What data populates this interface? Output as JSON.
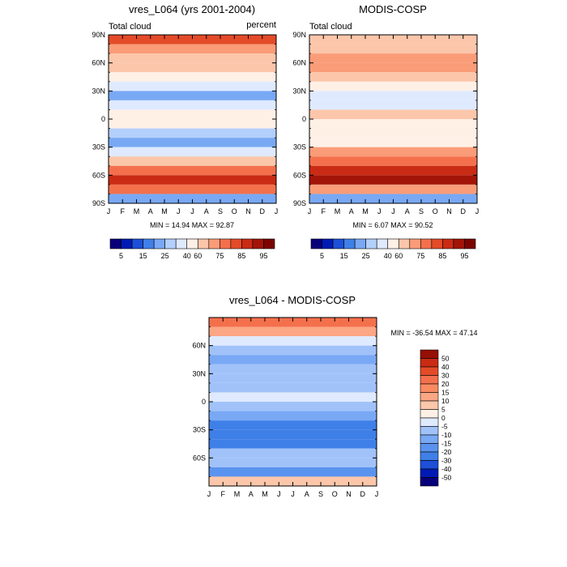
{
  "chart_data": [
    {
      "type": "heatmap",
      "title": "vres_L064 (yrs 2001-2004)",
      "left_label": "Total cloud",
      "right_label": "percent",
      "x_months": [
        "J",
        "F",
        "M",
        "A",
        "M",
        "J",
        "J",
        "A",
        "S",
        "O",
        "N",
        "D",
        "J"
      ],
      "y_ticks": [
        "90N",
        "60N",
        "30N",
        "0",
        "30S",
        "60S",
        "90S"
      ],
      "y_tick_values": [
        90,
        60,
        30,
        0,
        -30,
        -60,
        -90
      ],
      "ylim": [
        -90,
        90
      ],
      "stats": "MIN =  14.94 MAX =  92.87",
      "colorbar": {
        "orientation": "horizontal",
        "labels": [
          "5",
          "15",
          "25",
          "40",
          "60",
          "75",
          "85",
          "95"
        ]
      },
      "fields": {
        "description": "zonal-band approximations of the contour field (lat in degrees, values in percent)",
        "lat_bands": [
          85,
          75,
          65,
          55,
          45,
          35,
          25,
          15,
          5,
          -5,
          -15,
          -25,
          -35,
          -45,
          -55,
          -65,
          -75,
          -85
        ],
        "values": [
          75,
          68,
          58,
          50,
          42,
          36,
          22,
          30,
          45,
          40,
          25,
          20,
          30,
          50,
          72,
          80,
          70,
          20
        ]
      }
    },
    {
      "type": "heatmap",
      "title": "MODIS-COSP",
      "left_label": "Total cloud",
      "x_months": [
        "J",
        "F",
        "M",
        "A",
        "M",
        "J",
        "J",
        "A",
        "S",
        "O",
        "N",
        "D",
        "J"
      ],
      "y_ticks": [
        "90N",
        "60N",
        "30N",
        "0",
        "30S",
        "60S",
        "90S"
      ],
      "y_tick_values": [
        90,
        60,
        30,
        0,
        -30,
        -60,
        -90
      ],
      "ylim": [
        -90,
        90
      ],
      "stats": "MIN =   6.07 MAX =  90.52",
      "colorbar": {
        "orientation": "horizontal",
        "labels": [
          "5",
          "15",
          "25",
          "40",
          "60",
          "75",
          "85",
          "95"
        ]
      },
      "fields": {
        "description": "zonal-band approximations of the contour field (lat in degrees, values in percent)",
        "lat_bands": [
          85,
          75,
          65,
          55,
          45,
          35,
          25,
          15,
          5,
          -5,
          -15,
          -25,
          -35,
          -45,
          -55,
          -65,
          -75,
          -85
        ],
        "values": [
          50,
          58,
          62,
          60,
          52,
          40,
          30,
          38,
          50,
          48,
          42,
          48,
          60,
          70,
          82,
          85,
          60,
          20
        ]
      }
    },
    {
      "type": "heatmap",
      "title": "vres_L064 - MODIS-COSP",
      "x_months": [
        "J",
        "F",
        "M",
        "A",
        "M",
        "J",
        "J",
        "A",
        "S",
        "O",
        "N",
        "D",
        "J"
      ],
      "y_ticks": [
        "60N",
        "30N",
        "0",
        "30S",
        "60S"
      ],
      "y_tick_values": [
        60,
        30,
        0,
        -30,
        -60
      ],
      "ylim": [
        -90,
        90
      ],
      "stats": "MIN = -36.54 MAX =  47.14",
      "colorbar": {
        "orientation": "vertical",
        "labels": [
          "50",
          "40",
          "30",
          "20",
          "15",
          "10",
          "5",
          "0",
          "-5",
          "-10",
          "-15",
          "-20",
          "-30",
          "-40",
          "-50"
        ]
      },
      "fields": {
        "description": "zonal-band approximations of the difference field (lat in degrees, values in percent)",
        "lat_bands": [
          85,
          75,
          65,
          55,
          45,
          35,
          25,
          15,
          5,
          -5,
          -15,
          -25,
          -35,
          -45,
          -55,
          -65,
          -75,
          -85
        ],
        "values": [
          28,
          10,
          -4,
          -10,
          -12,
          -6,
          -8,
          -8,
          -5,
          -8,
          -15,
          -22,
          -28,
          -30,
          -10,
          -8,
          -20,
          5
        ]
      }
    }
  ],
  "colors": {
    "percent_scale": [
      "#08007a",
      "#001bb4",
      "#1d4fd8",
      "#3f7fe8",
      "#79a8f4",
      "#b3cffb",
      "#dfeaff",
      "#fff0e6",
      "#fcc6aa",
      "#fa9c78",
      "#f4704c",
      "#e44b28",
      "#c92b14",
      "#a31408",
      "#7c0400"
    ],
    "diff_scale": [
      "#08007a",
      "#001bb4",
      "#1d4fd8",
      "#3f7fe8",
      "#5a93ef",
      "#79a8f4",
      "#a1c2f9",
      "#dfeaff",
      "#fff0e6",
      "#fcc6aa",
      "#fba684",
      "#f98a62",
      "#f4704c",
      "#e44b28",
      "#c92b14",
      "#960f05"
    ],
    "axis": "#000000",
    "missing": "#ffffff"
  }
}
